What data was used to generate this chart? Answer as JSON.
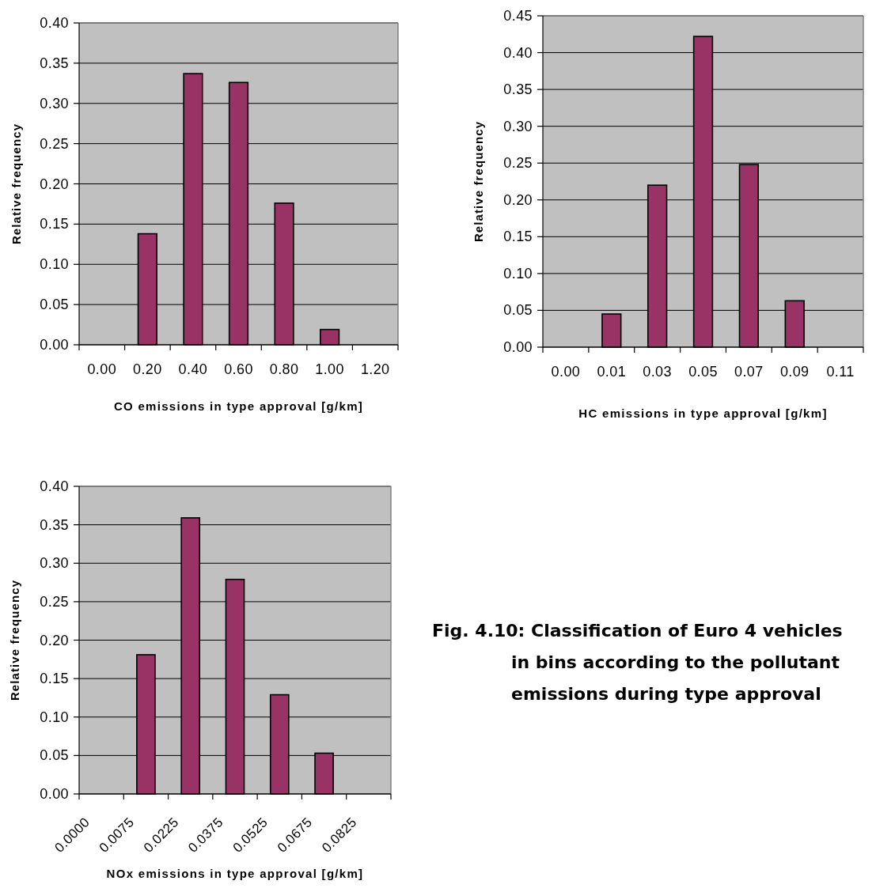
{
  "chart_data": [
    {
      "type": "bar",
      "categories": [
        "0.00",
        "0.20",
        "0.40",
        "0.60",
        "0.80",
        "1.00",
        "1.20"
      ],
      "values": [
        0,
        0.138,
        0.337,
        0.326,
        0.176,
        0.019,
        0
      ],
      "color": "#993366",
      "xlabel": "CO emissions in type approval [g/km]",
      "ylabel": "Relative frequency",
      "ylim": [
        0,
        0.4
      ],
      "yticks": [
        {
          "value": 0,
          "label": "0.00"
        },
        {
          "value": 0.05,
          "label": "0.05"
        },
        {
          "value": 0.1,
          "label": "0.10"
        },
        {
          "value": 0.15,
          "label": "0.15"
        },
        {
          "value": 0.2,
          "label": "0.20"
        },
        {
          "value": 0.25,
          "label": "0.25"
        },
        {
          "value": 0.3,
          "label": "0.30"
        },
        {
          "value": 0.35,
          "label": "0.35"
        },
        {
          "value": 0.4,
          "label": "0.40"
        }
      ],
      "grid": "y"
    },
    {
      "type": "bar",
      "categories": [
        "0.00",
        "0.01",
        "0.03",
        "0.05",
        "0.07",
        "0.09",
        "0.11"
      ],
      "values": [
        0,
        0.045,
        0.22,
        0.422,
        0.248,
        0.063,
        0
      ],
      "color": "#993366",
      "xlabel": "HC emissions in type approval [g/km]",
      "ylabel": "Relative frequency",
      "ylim": [
        0,
        0.45
      ],
      "yticks": [
        {
          "value": 0,
          "label": "0.00"
        },
        {
          "value": 0.05,
          "label": "0.05"
        },
        {
          "value": 0.1,
          "label": "0.10"
        },
        {
          "value": 0.15,
          "label": "0.15"
        },
        {
          "value": 0.2,
          "label": "0.20"
        },
        {
          "value": 0.25,
          "label": "0.25"
        },
        {
          "value": 0.3,
          "label": "0.30"
        },
        {
          "value": 0.35,
          "label": "0.35"
        },
        {
          "value": 0.4,
          "label": "0.40"
        },
        {
          "value": 0.45,
          "label": "0.45"
        }
      ],
      "grid": "y"
    },
    {
      "type": "bar",
      "categories": [
        "0.0000",
        "0.0075",
        "0.0225",
        "0.0375",
        "0.0525",
        "0.0675",
        "0.0825"
      ],
      "values": [
        0,
        0.181,
        0.359,
        0.279,
        0.129,
        0.053,
        0
      ],
      "color": "#993366",
      "xlabel": "NOx emissions in type approval [g/km]",
      "ylabel": "Relative frequency",
      "ylim": [
        0,
        0.4
      ],
      "yticks": [
        {
          "value": 0,
          "label": "0.00"
        },
        {
          "value": 0.05,
          "label": "0.05"
        },
        {
          "value": 0.1,
          "label": "0.10"
        },
        {
          "value": 0.15,
          "label": "0.15"
        },
        {
          "value": 0.2,
          "label": "0.20"
        },
        {
          "value": 0.25,
          "label": "0.25"
        },
        {
          "value": 0.3,
          "label": "0.30"
        },
        {
          "value": 0.35,
          "label": "0.35"
        },
        {
          "value": 0.4,
          "label": "0.40"
        }
      ],
      "grid": "y"
    },
    {
      "type": "other",
      "annotations": [
        "Fig. 4.10: Classification of Euro 4 vehicles in bins according to the pollutant emissions during type approval"
      ]
    }
  ]
}
